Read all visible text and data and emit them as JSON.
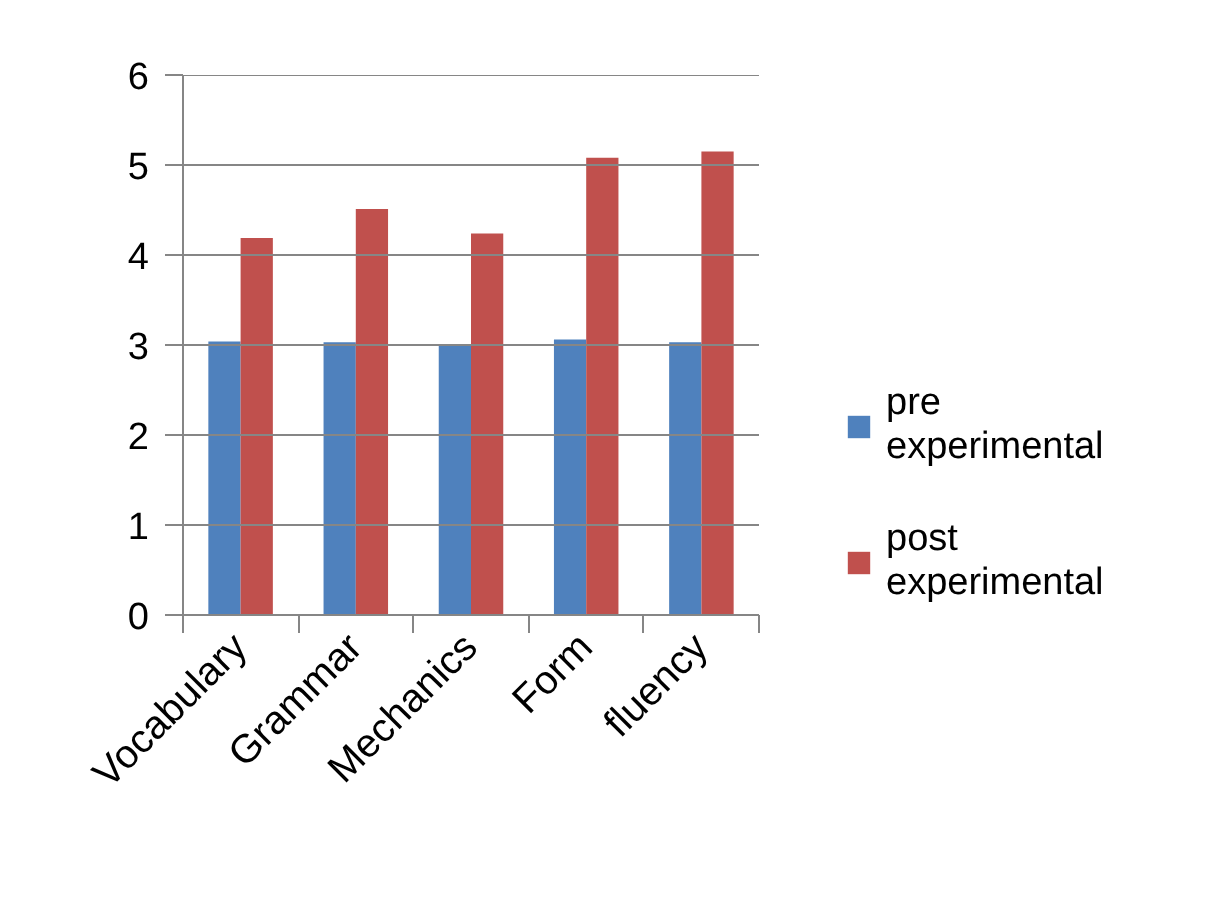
{
  "chart_data": {
    "type": "bar",
    "categories": [
      "Vocabulary",
      "Grammar",
      "Mechanics",
      "Form",
      "fluency"
    ],
    "series": [
      {
        "name": "pre experimental",
        "color": "#4f81bd",
        "values": [
          3.04,
          3.03,
          3.01,
          3.06,
          3.03
        ]
      },
      {
        "name": "post experimental",
        "color": "#c0504d",
        "values": [
          4.19,
          4.51,
          4.24,
          5.08,
          5.15
        ]
      }
    ],
    "ylim": [
      0,
      6
    ],
    "yticks": [
      0,
      1,
      2,
      3,
      4,
      5,
      6
    ],
    "grid": "y",
    "legend": "right"
  }
}
